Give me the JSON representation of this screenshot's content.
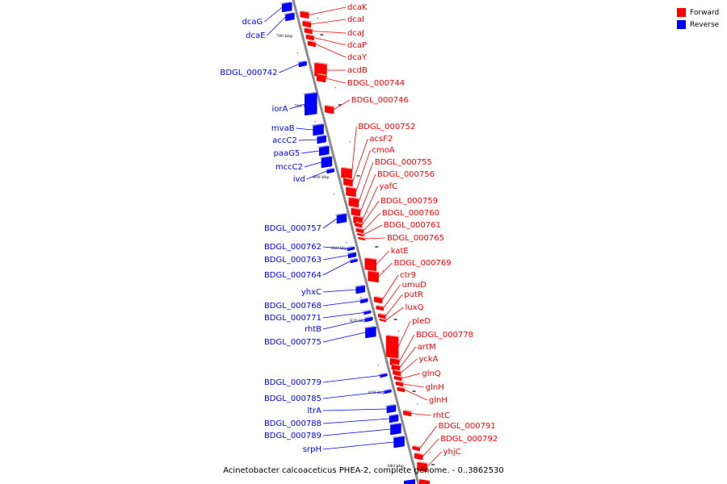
{
  "colors": {
    "forward": "#ff0000",
    "reverse": "#0000ff",
    "backbone": "#8c8c8c"
  },
  "legend": [
    {
      "label": "Forward",
      "color": "#ff0000"
    },
    {
      "label": "Reverse",
      "color": "#0000ff"
    }
  ],
  "caption": "Acinetobacter calcoaceticus PHEA-2, complete genome. - 0..3862530",
  "tick_labels": [
    "780 kbp",
    "790 kbp",
    "800 kbp",
    "810 kbp",
    "820 kbp",
    "830 kbp",
    "840 kbp"
  ],
  "forward_genes": [
    "dcaK",
    "dcaI",
    "dcaJ",
    "dcaP",
    "dcaY",
    "acdB",
    "BDGL_000744",
    "BDGL_000746",
    "BDGL_000752",
    "acsF2",
    "cmoA",
    "BDGL_000755",
    "BDGL_000756",
    "yafC",
    "BDGL_000759",
    "BDGL_000760",
    "BDGL_000761",
    "BDGL_000765",
    "katE",
    "BDGL_000769",
    "ctr9",
    "umuD",
    "putR",
    "luxQ",
    "pleD",
    "BDGL_000778",
    "artM",
    "yckA",
    "glnQ",
    "glnH",
    "glnH",
    "rhtC",
    "BDGL_000791",
    "BDGL_000792",
    "yhjC"
  ],
  "reverse_genes": [
    "dcaG",
    "dcaE",
    "BDGL_000742",
    "iorA",
    "mvaB",
    "accC2",
    "paaG5",
    "mccC2",
    "ivd",
    "BDGL_000757",
    "BDGL_000762",
    "BDGL_000763",
    "BDGL_000764",
    "yhxC",
    "BDGL_000768",
    "BDGL_000771",
    "rhtB",
    "BDGL_000775",
    "BDGL_000779",
    "BDGL_000785",
    "ltrA",
    "BDGL_000788",
    "BDGL_000789",
    "srpH"
  ]
}
